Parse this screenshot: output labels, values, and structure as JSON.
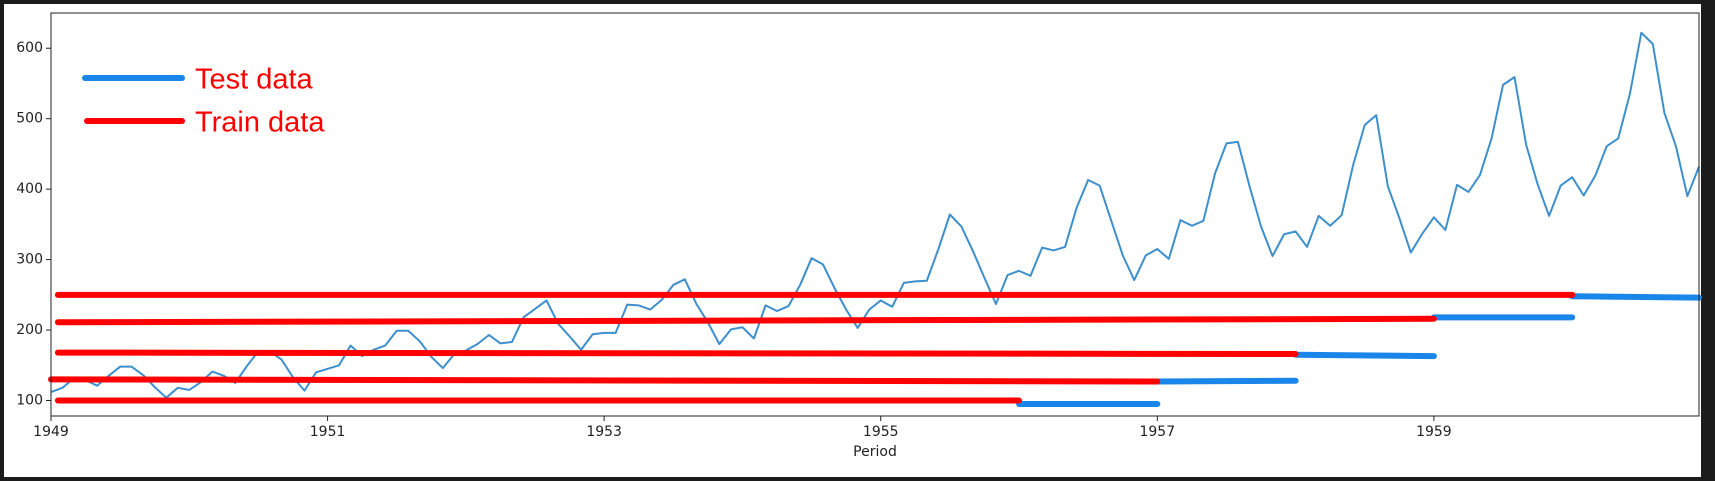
{
  "chart_data": {
    "type": "line",
    "xlabel": "Period",
    "color": "#3d8fcd",
    "x": [
      1949,
      1949.083,
      1949.167,
      1949.25,
      1949.333,
      1949.417,
      1949.5,
      1949.583,
      1949.667,
      1949.75,
      1949.833,
      1949.917,
      1950,
      1950.083,
      1950.167,
      1950.25,
      1950.333,
      1950.417,
      1950.5,
      1950.583,
      1950.667,
      1950.75,
      1950.833,
      1950.917,
      1951,
      1951.083,
      1951.167,
      1951.25,
      1951.333,
      1951.417,
      1951.5,
      1951.583,
      1951.667,
      1951.75,
      1951.833,
      1951.917,
      1952,
      1952.083,
      1952.167,
      1952.25,
      1952.333,
      1952.417,
      1952.5,
      1952.583,
      1952.667,
      1952.75,
      1952.833,
      1952.917,
      1953,
      1953.083,
      1953.167,
      1953.25,
      1953.333,
      1953.417,
      1953.5,
      1953.583,
      1953.667,
      1953.75,
      1953.833,
      1953.917,
      1954,
      1954.083,
      1954.167,
      1954.25,
      1954.333,
      1954.417,
      1954.5,
      1954.583,
      1954.667,
      1954.75,
      1954.833,
      1954.917,
      1955,
      1955.083,
      1955.167,
      1955.25,
      1955.333,
      1955.417,
      1955.5,
      1955.583,
      1955.667,
      1955.75,
      1955.833,
      1955.917,
      1956,
      1956.083,
      1956.167,
      1956.25,
      1956.333,
      1956.417,
      1956.5,
      1956.583,
      1956.667,
      1956.75,
      1956.833,
      1956.917,
      1957,
      1957.083,
      1957.167,
      1957.25,
      1957.333,
      1957.417,
      1957.5,
      1957.583,
      1957.667,
      1957.75,
      1957.833,
      1957.917,
      1958,
      1958.083,
      1958.167,
      1958.25,
      1958.333,
      1958.417,
      1958.5,
      1958.583,
      1958.667,
      1958.75,
      1958.833,
      1958.917,
      1959,
      1959.083,
      1959.167,
      1959.25,
      1959.333,
      1959.417,
      1959.5,
      1959.583,
      1959.667,
      1959.75,
      1959.833,
      1959.917,
      1960,
      1960.083,
      1960.167,
      1960.25,
      1960.333,
      1960.417,
      1960.5,
      1960.583,
      1960.667,
      1960.75,
      1960.833,
      1960.917
    ],
    "values": [
      112,
      118,
      132,
      129,
      121,
      135,
      148,
      148,
      136,
      119,
      104,
      118,
      115,
      126,
      141,
      135,
      125,
      149,
      170,
      170,
      158,
      133,
      114,
      140,
      145,
      150,
      178,
      163,
      172,
      178,
      199,
      199,
      184,
      162,
      146,
      166,
      171,
      180,
      193,
      181,
      183,
      218,
      230,
      242,
      209,
      191,
      172,
      194,
      196,
      196,
      236,
      235,
      229,
      243,
      264,
      272,
      237,
      211,
      180,
      201,
      204,
      188,
      235,
      227,
      234,
      264,
      302,
      293,
      259,
      229,
      203,
      229,
      242,
      233,
      267,
      269,
      270,
      315,
      364,
      347,
      312,
      274,
      237,
      278,
      284,
      277,
      317,
      313,
      318,
      374,
      413,
      405,
      355,
      306,
      271,
      306,
      315,
      301,
      356,
      348,
      355,
      422,
      465,
      467,
      404,
      347,
      305,
      336,
      340,
      318,
      362,
      348,
      363,
      435,
      491,
      505,
      404,
      359,
      310,
      337,
      360,
      342,
      406,
      396,
      420,
      472,
      548,
      559,
      463,
      407,
      362,
      405,
      417,
      391,
      419,
      461,
      472,
      535,
      622,
      606,
      508,
      461,
      390,
      432
    ],
    "xlim": [
      1949,
      1960.917
    ],
    "ylim": [
      78,
      650
    ],
    "xticks": [
      1949,
      1951,
      1953,
      1955,
      1957,
      1959
    ],
    "yticks": [
      100,
      200,
      300,
      400,
      500,
      600
    ],
    "series": [
      {
        "name": "Test data",
        "color": "#1a86ea",
        "segments": [
          {
            "x": [
              1960,
              1960.917
            ],
            "values": [
              248,
              246
            ]
          },
          {
            "x": [
              1959,
              1960
            ],
            "values": [
              218,
              218
            ]
          },
          {
            "x": [
              1958,
              1959
            ],
            "values": [
              165,
              163
            ]
          },
          {
            "x": [
              1957,
              1958
            ],
            "values": [
              127,
              128
            ]
          },
          {
            "x": [
              1956,
              1957
            ],
            "values": [
              95,
              95
            ]
          }
        ]
      },
      {
        "name": "Train data",
        "color": "#ff0000",
        "segments": [
          {
            "x": [
              1949.05,
              1960
            ],
            "values": [
              250,
              250
            ]
          },
          {
            "x": [
              1949.05,
              1959
            ],
            "values": [
              211,
              216
            ]
          },
          {
            "x": [
              1949.05,
              1958
            ],
            "values": [
              168,
              166
            ]
          },
          {
            "x": [
              1949,
              1957
            ],
            "values": [
              130,
              127
            ]
          },
          {
            "x": [
              1949.05,
              1956
            ],
            "values": [
              100,
              100
            ]
          }
        ]
      }
    ]
  }
}
